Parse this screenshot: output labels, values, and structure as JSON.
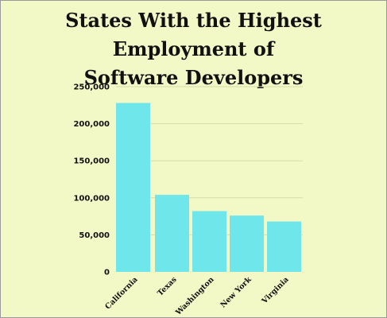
{
  "chart_data": {
    "type": "bar",
    "title_lines": [
      "States With the Highest Employment of",
      "Software Developers"
    ],
    "categories": [
      "California",
      "Texas",
      "Washington",
      "New York",
      "Virginia"
    ],
    "values": [
      228000,
      104000,
      82000,
      76000,
      68000
    ],
    "ylim": [
      0,
      250000
    ],
    "yticks": [
      0,
      50000,
      100000,
      150000,
      200000,
      250000
    ],
    "ytick_labels": [
      "0",
      "50,000",
      "100,000",
      "150,000",
      "200,000",
      "250,000"
    ],
    "grid": true,
    "colors": {
      "bar": "#6ee6ea",
      "grid": "#d6dca8",
      "background": "#f3f9c6"
    }
  }
}
